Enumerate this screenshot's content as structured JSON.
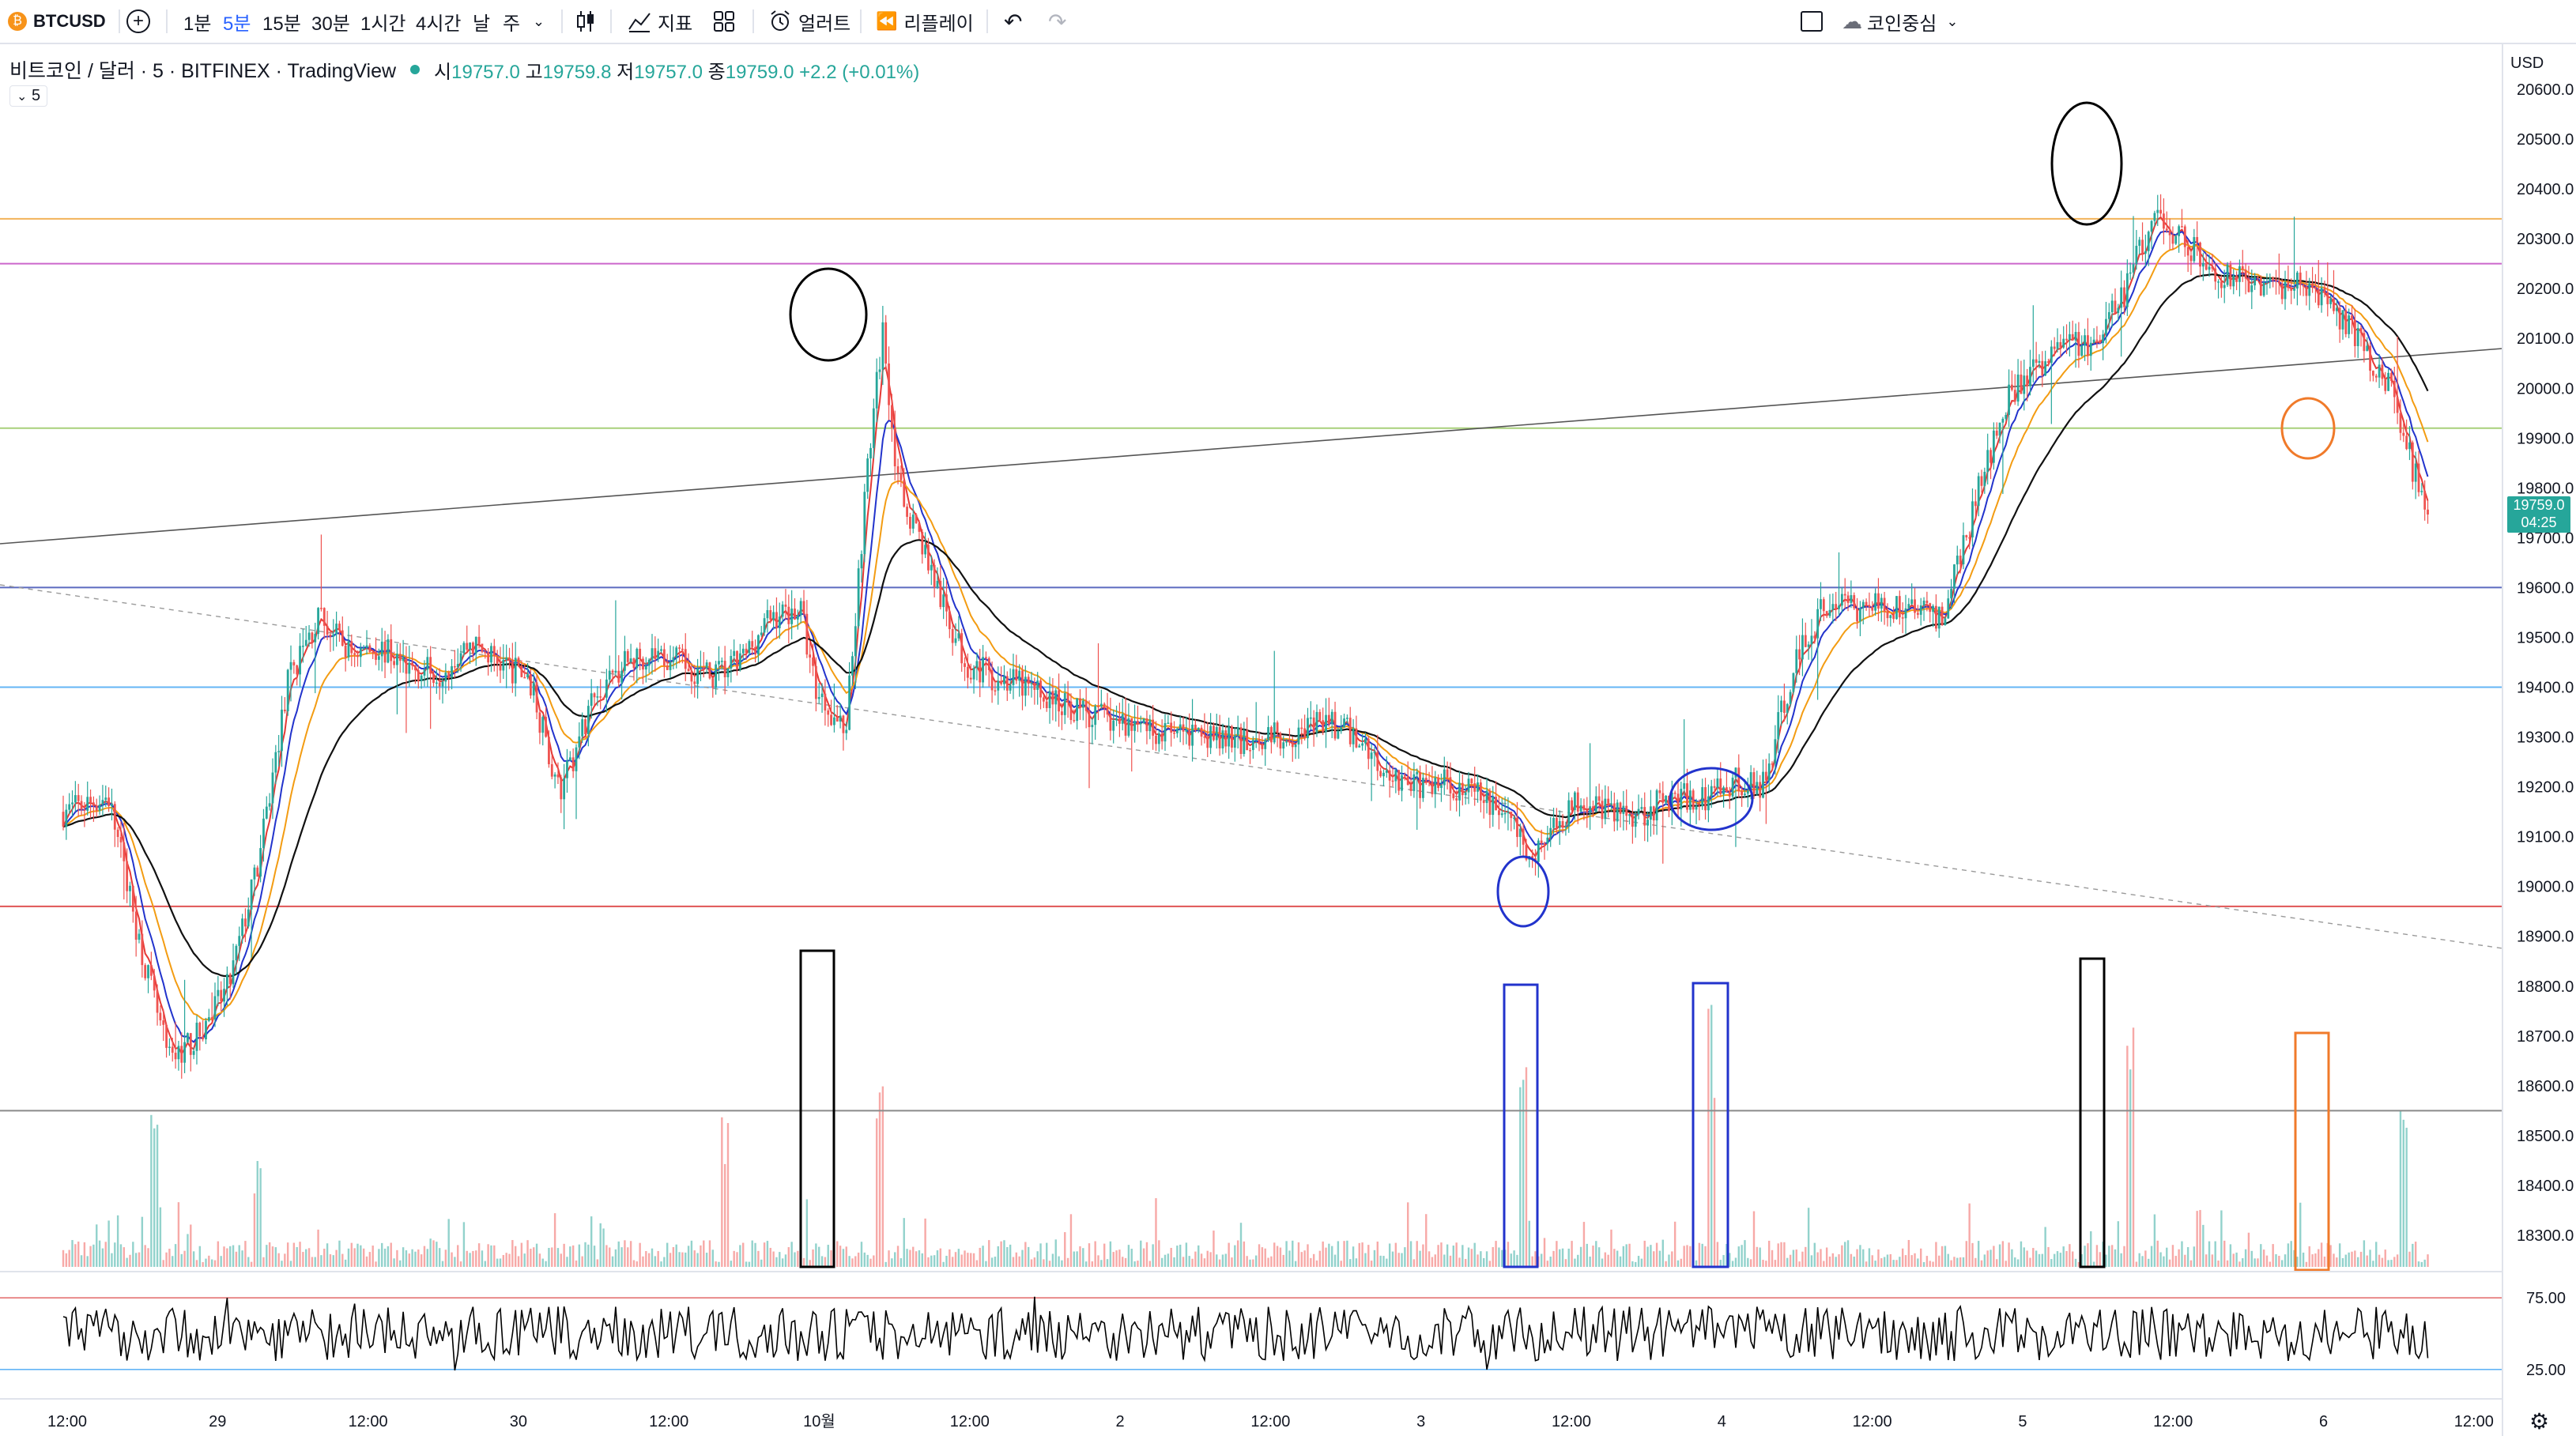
{
  "toolbar": {
    "symbol": "BTCUSD",
    "intervals": [
      "1분",
      "5분",
      "15분",
      "30분",
      "1시간",
      "4시간",
      "날",
      "주"
    ],
    "active_interval": "5분",
    "indicators_label": "지표",
    "alert_label": "얼러트",
    "replay_label": "리플레이",
    "coin_focus_label": "코인중심",
    "colors": {
      "accent": "#2962ff",
      "symbol_icon": "#f7931a"
    }
  },
  "legend": {
    "title": "비트코인 / 달러 · 5 · BITFINEX · TradingView",
    "open_label": "시",
    "open": "19757.0",
    "high_label": "고",
    "high": "19759.8",
    "low_label": "저",
    "low": "19757.0",
    "close_label": "종",
    "close": "19759.0",
    "change": "+2.2 (+0.01%)",
    "interval_badge": "5"
  },
  "price_axis": {
    "currency": "USD",
    "ticks": [
      "20600.0",
      "20500.0",
      "20400.0",
      "20300.0",
      "20200.0",
      "20100.0",
      "20000.0",
      "19900.0",
      "19800.0",
      "19700.0",
      "19600.0",
      "19500.0",
      "19400.0",
      "19300.0",
      "19200.0",
      "19100.0",
      "19000.0",
      "18900.0",
      "18800.0",
      "18700.0",
      "18600.0",
      "18500.0",
      "18400.0",
      "18300.0"
    ],
    "current_price": "19759.0",
    "countdown": "04:25"
  },
  "rsi_axis": {
    "ticks": [
      "75.00",
      "25.00"
    ]
  },
  "time_axis": {
    "ticks": [
      "12:00",
      "29",
      "12:00",
      "30",
      "12:00",
      "10월",
      "12:00",
      "2",
      "12:00",
      "3",
      "12:00",
      "4",
      "12:00",
      "5",
      "12:00",
      "6",
      "12:00"
    ]
  },
  "chart_data": {
    "type": "candlestick",
    "symbol": "BTCUSD",
    "exchange": "BITFINEX",
    "interval": "5",
    "ylim": [
      18250,
      20650
    ],
    "y_ticks": [
      18300,
      18400,
      18500,
      18600,
      18700,
      18800,
      18900,
      19000,
      19100,
      19200,
      19300,
      19400,
      19500,
      19600,
      19700,
      19800,
      19900,
      20000,
      20100,
      20200,
      20300,
      20400,
      20500,
      20600
    ],
    "x_ticks": [
      "12:00",
      "29",
      "12:00",
      "30",
      "12:00",
      "10월",
      "12:00",
      "2",
      "12:00",
      "3",
      "12:00",
      "4",
      "12:00",
      "5",
      "12:00",
      "6",
      "12:00"
    ],
    "x_range": [
      0,
      16.3
    ],
    "price_path": [
      [
        0,
        19150
      ],
      [
        0.3,
        19180
      ],
      [
        0.5,
        18900
      ],
      [
        0.7,
        18650
      ],
      [
        0.9,
        18700
      ],
      [
        1.1,
        18800
      ],
      [
        1.3,
        19050
      ],
      [
        1.5,
        19420
      ],
      [
        1.7,
        19540
      ],
      [
        1.9,
        19470
      ],
      [
        2.1,
        19480
      ],
      [
        2.3,
        19440
      ],
      [
        2.5,
        19430
      ],
      [
        2.7,
        19490
      ],
      [
        2.9,
        19450
      ],
      [
        3.1,
        19420
      ],
      [
        3.3,
        19180
      ],
      [
        3.5,
        19360
      ],
      [
        3.7,
        19440
      ],
      [
        3.9,
        19470
      ],
      [
        4.1,
        19450
      ],
      [
        4.3,
        19420
      ],
      [
        4.5,
        19450
      ],
      [
        4.7,
        19540
      ],
      [
        4.9,
        19560
      ],
      [
        5.0,
        19400
      ],
      [
        5.2,
        19310
      ],
      [
        5.35,
        19850
      ],
      [
        5.45,
        20120
      ],
      [
        5.55,
        19800
      ],
      [
        5.7,
        19700
      ],
      [
        5.85,
        19560
      ],
      [
        6.0,
        19450
      ],
      [
        6.2,
        19420
      ],
      [
        6.4,
        19400
      ],
      [
        6.6,
        19370
      ],
      [
        6.8,
        19350
      ],
      [
        7.0,
        19330
      ],
      [
        7.2,
        19320
      ],
      [
        7.4,
        19300
      ],
      [
        7.6,
        19300
      ],
      [
        7.8,
        19290
      ],
      [
        8.0,
        19300
      ],
      [
        8.2,
        19310
      ],
      [
        8.4,
        19330
      ],
      [
        8.6,
        19300
      ],
      [
        8.8,
        19230
      ],
      [
        9.0,
        19200
      ],
      [
        9.2,
        19210
      ],
      [
        9.4,
        19180
      ],
      [
        9.6,
        19150
      ],
      [
        9.75,
        19050
      ],
      [
        9.9,
        19120
      ],
      [
        10.1,
        19180
      ],
      [
        10.3,
        19150
      ],
      [
        10.5,
        19150
      ],
      [
        10.7,
        19180
      ],
      [
        10.9,
        19180
      ],
      [
        11.1,
        19210
      ],
      [
        11.3,
        19200
      ],
      [
        11.5,
        19440
      ],
      [
        11.7,
        19560
      ],
      [
        11.9,
        19560
      ],
      [
        12.1,
        19560
      ],
      [
        12.3,
        19560
      ],
      [
        12.5,
        19540
      ],
      [
        12.7,
        19760
      ],
      [
        12.9,
        19970
      ],
      [
        13.1,
        20030
      ],
      [
        13.3,
        20100
      ],
      [
        13.5,
        20080
      ],
      [
        13.7,
        20190
      ],
      [
        13.9,
        20350
      ],
      [
        14.1,
        20300
      ],
      [
        14.3,
        20230
      ],
      [
        14.5,
        20220
      ],
      [
        14.7,
        20200
      ],
      [
        14.9,
        20210
      ],
      [
        15.1,
        20150
      ],
      [
        15.3,
        20080
      ],
      [
        15.5,
        19990
      ],
      [
        15.6,
        19860
      ],
      [
        15.7,
        19760
      ]
    ],
    "marker_lines": [
      {
        "price": 20340,
        "color": "#f2b35a"
      },
      {
        "price": 20250,
        "color": "#cc66cc"
      },
      {
        "price": 19920,
        "color": "#a8d07a"
      },
      {
        "price": 19600,
        "color": "#5c6bc0"
      },
      {
        "price": 19400,
        "color": "#64b5f6"
      },
      {
        "price": 18960,
        "color": "#e05555"
      },
      {
        "price": 18550,
        "color": "#8a8a8a"
      }
    ],
    "rsi_levels": [
      75,
      25
    ]
  }
}
